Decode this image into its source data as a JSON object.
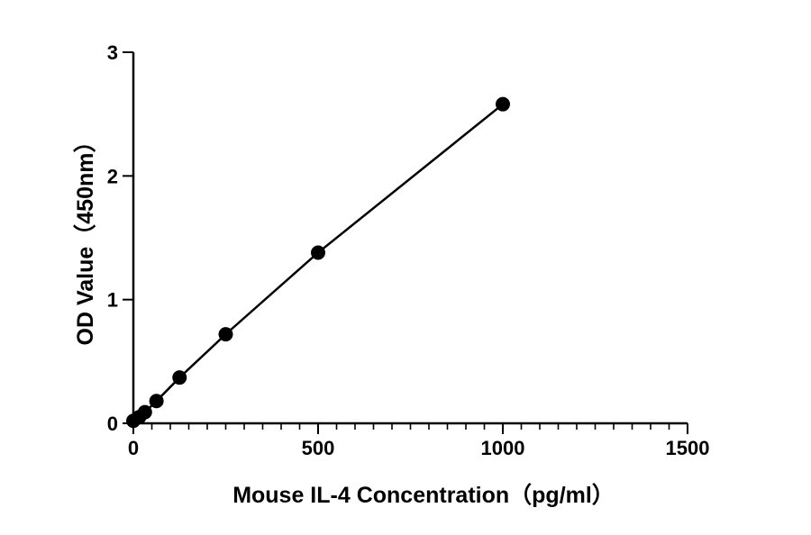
{
  "chart_data": {
    "type": "line",
    "title": "",
    "xlabel": "Mouse IL-4  Concentration（pg/ml）",
    "ylabel": "OD Value（450nm）",
    "xlim": [
      0,
      1500
    ],
    "ylim": [
      0,
      3
    ],
    "xticks": [
      0,
      500,
      1000,
      1500
    ],
    "yticks": [
      0,
      1,
      2,
      3
    ],
    "grid": false,
    "legend": "none",
    "series": [
      {
        "x": [
          0,
          15.6,
          31.2,
          62.5,
          125,
          250,
          500,
          1000
        ],
        "y": [
          0.02,
          0.05,
          0.09,
          0.18,
          0.37,
          0.72,
          1.38,
          2.58
        ]
      }
    ]
  }
}
